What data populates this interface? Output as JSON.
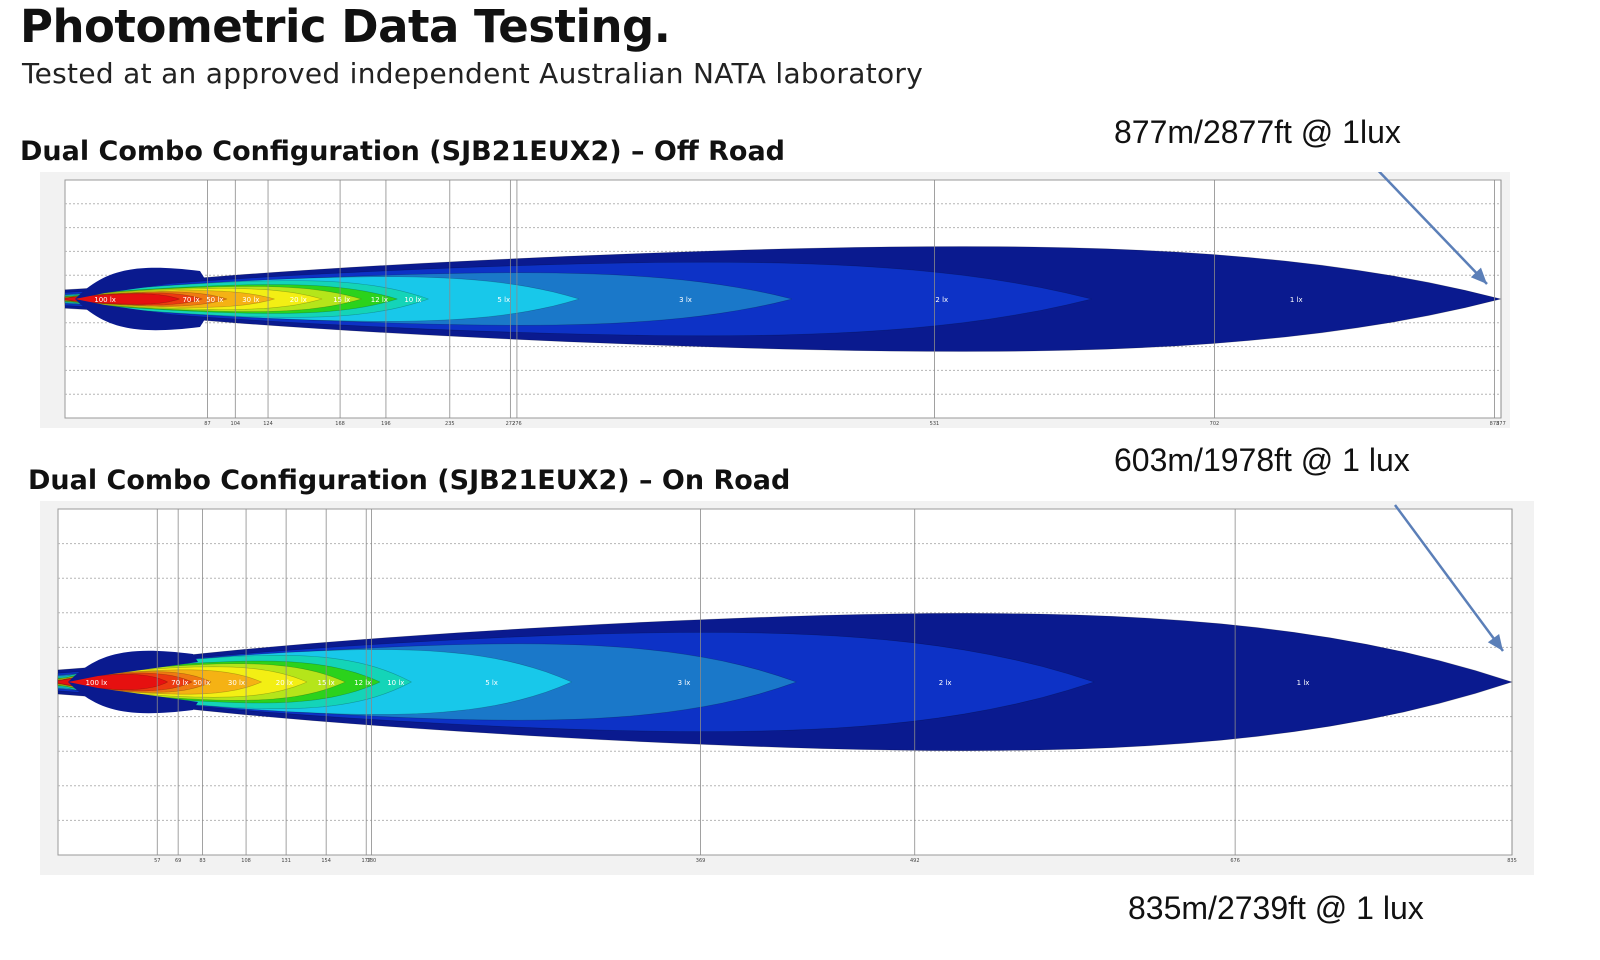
{
  "page": {
    "title": "Photometric Data Testing.",
    "subtitle": "Tested at an approved independent Australian NATA laboratory"
  },
  "colors": {
    "panel_bg": "#f2f2f2",
    "grid_line": "#b5b5b5",
    "vertical_line": "#8a8a8a",
    "arrow": "#5b7fb8",
    "contours": [
      "#0a1a8f",
      "#0d32c6",
      "#1a78c9",
      "#18c8ea",
      "#14d4b8",
      "#2bd21c",
      "#b5e51a",
      "#f3ef14",
      "#f5b214",
      "#f07a12",
      "#ec3a10",
      "#e61010"
    ]
  },
  "chart_data": [
    {
      "type": "heatmap",
      "title": "Dual Combo Configuration (SJB21EUX2) – Off Road",
      "annotation": "877m/2877ft @ 1lux",
      "x_unit": "m",
      "x_tick_values": [
        87,
        104,
        124,
        168,
        196,
        235,
        272,
        276,
        531,
        702,
        873,
        877
      ],
      "xlim": [
        0,
        877
      ],
      "isolux_contours": [
        {
          "label": "1 lx",
          "reach": 877,
          "max_half_width": 0.2
        },
        {
          "label": "2 lx",
          "reach": 627,
          "max_half_width": 0.14
        },
        {
          "label": "3 lx",
          "reach": 444,
          "max_half_width": 0.1
        },
        {
          "label": "5 lx",
          "reach": 314,
          "max_half_width": 0.085
        },
        {
          "label": "10 lx",
          "reach": 222,
          "max_half_width": 0.07
        },
        {
          "label": "12 lx",
          "reach": 203,
          "max_half_width": 0.055
        },
        {
          "label": "15 lx",
          "reach": 181,
          "max_half_width": 0.048
        },
        {
          "label": "20 lx",
          "reach": 157,
          "max_half_width": 0.04
        },
        {
          "label": "30 lx",
          "reach": 128,
          "max_half_width": 0.032
        },
        {
          "label": "50 lx",
          "reach": 99,
          "max_half_width": 0.027
        },
        {
          "label": "70 lx",
          "reach": 84,
          "max_half_width": 0.023
        },
        {
          "label": "100 lx",
          "reach": 70,
          "max_half_width": 0.02
        }
      ]
    },
    {
      "type": "heatmap",
      "title": "Dual Combo Configuration (SJB21EUX2) – On Road",
      "annotation": "603m/1978ft @ 1 lux",
      "annotation_bottom": "835m/2739ft @ 1 lux",
      "x_unit": "m",
      "x_tick_values": [
        57,
        69,
        83,
        108,
        131,
        154,
        177,
        180,
        369,
        492,
        676,
        835
      ],
      "xlim": [
        0,
        835
      ],
      "isolux_contours": [
        {
          "label": "1 lx",
          "reach": 835,
          "max_half_width": 0.18
        },
        {
          "label": "2 lx",
          "reach": 595,
          "max_half_width": 0.13
        },
        {
          "label": "3 lx",
          "reach": 424,
          "max_half_width": 0.1
        },
        {
          "label": "5 lx",
          "reach": 295,
          "max_half_width": 0.085
        },
        {
          "label": "10 lx",
          "reach": 203,
          "max_half_width": 0.07
        },
        {
          "label": "12 lx",
          "reach": 185,
          "max_half_width": 0.055
        },
        {
          "label": "15 lx",
          "reach": 165,
          "max_half_width": 0.048
        },
        {
          "label": "20 lx",
          "reach": 143,
          "max_half_width": 0.04
        },
        {
          "label": "30 lx",
          "reach": 117,
          "max_half_width": 0.032
        },
        {
          "label": "50 lx",
          "reach": 88,
          "max_half_width": 0.027
        },
        {
          "label": "70 lx",
          "reach": 77,
          "max_half_width": 0.023
        },
        {
          "label": "100 lx",
          "reach": 63,
          "max_half_width": 0.02
        }
      ]
    }
  ]
}
